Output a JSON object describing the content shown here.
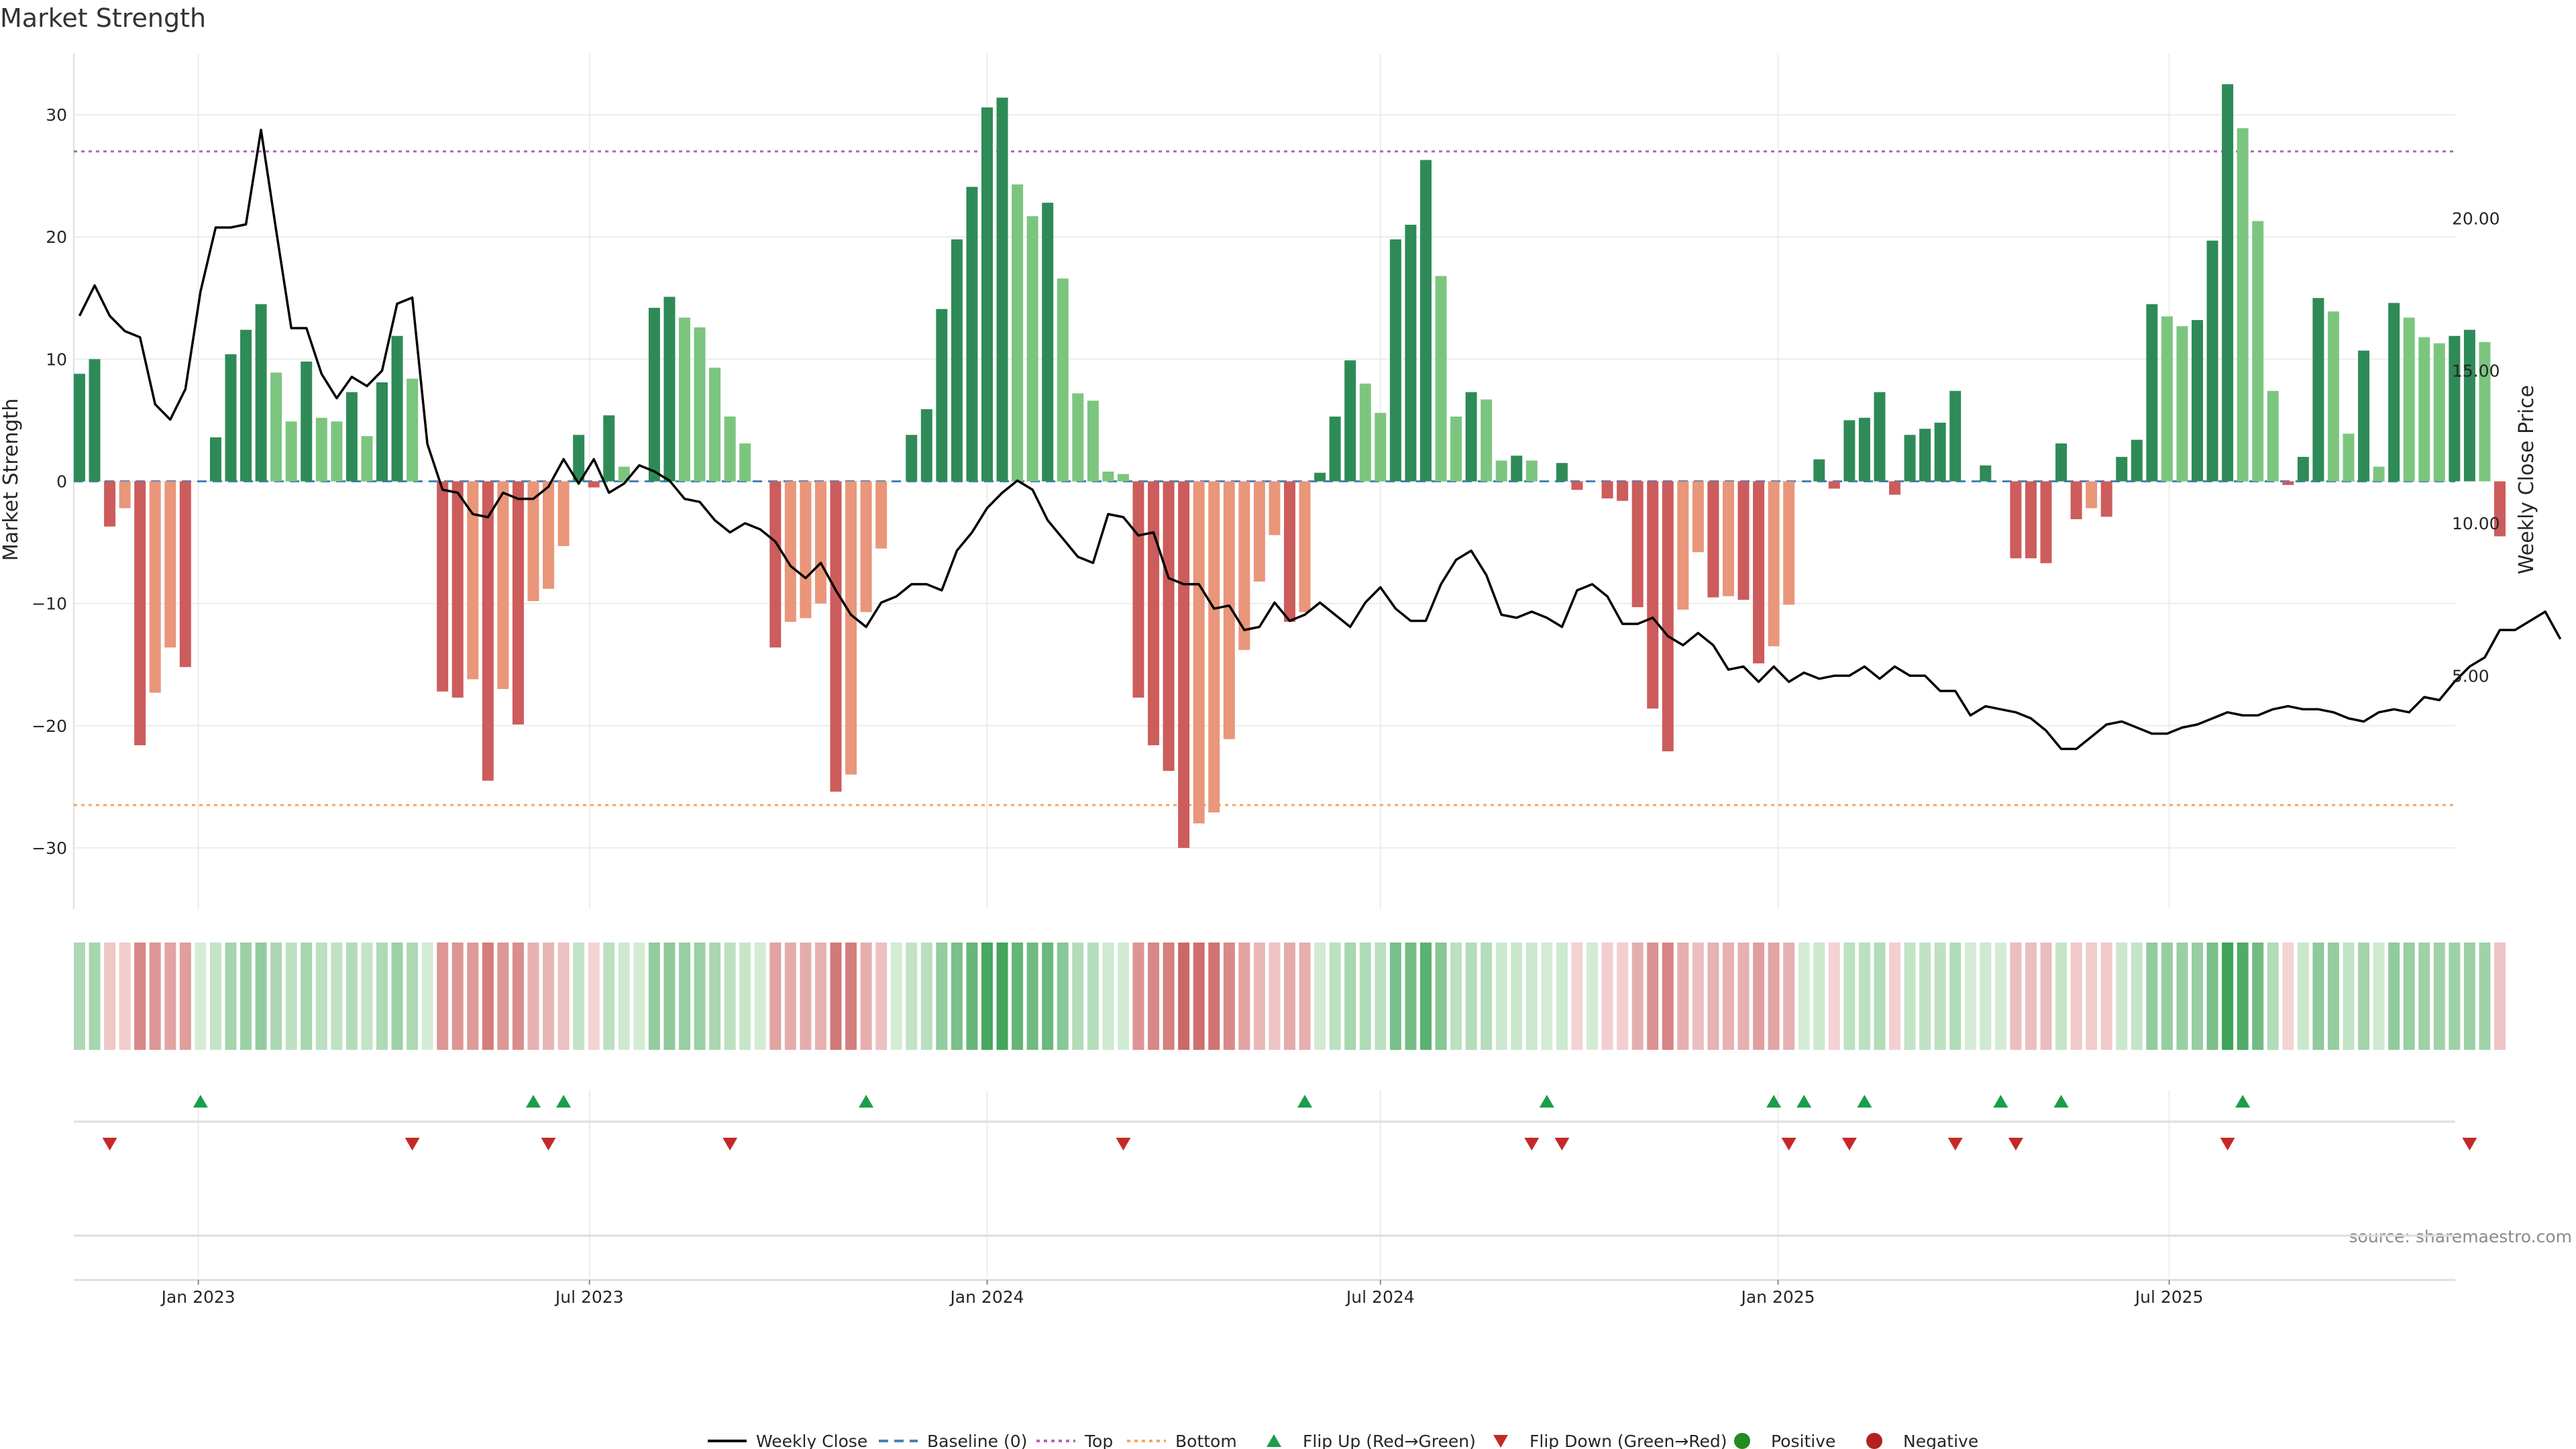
{
  "chart_data": {
    "title": "Market Strength",
    "type": "bar",
    "weeks_start": "2022-11-07",
    "x_axis": {
      "ticks": [
        "Jan 2023",
        "Jul 2023",
        "Jan 2024",
        "Jul 2024",
        "Jan 2025",
        "Jul 2025"
      ],
      "tick_dates": [
        "2023-01-01",
        "2023-07-01",
        "2024-01-01",
        "2024-07-01",
        "2025-01-01",
        "2025-07-01"
      ]
    },
    "left_axis": {
      "label": "Market Strength",
      "ylim": [
        -35,
        35
      ],
      "ticks": [
        "30",
        "20",
        "10",
        "0",
        "−10",
        "−20",
        "−30"
      ],
      "tick_values": [
        30,
        20,
        10,
        0,
        -10,
        -20,
        -30
      ]
    },
    "right_axis": {
      "label": "Weekly Close Price",
      "ylim": [
        -2.65,
        25.4
      ],
      "ticks": [
        "20.00",
        "15.00",
        "10.00",
        "5.00"
      ],
      "tick_values": [
        20,
        15,
        10,
        5
      ]
    },
    "reference_lines": {
      "top": 27.0,
      "bottom": -26.5,
      "baseline": 0
    },
    "strength": [
      8.8,
      10.0,
      -3.7,
      -2.2,
      -21.6,
      -17.3,
      -13.6,
      -15.2,
      0.0,
      3.6,
      10.4,
      12.4,
      14.5,
      8.9,
      4.9,
      9.8,
      5.2,
      4.9,
      7.3,
      3.7,
      8.1,
      11.9,
      8.4,
      0.0,
      -17.2,
      -17.7,
      -16.2,
      -24.5,
      -17.0,
      -19.9,
      -9.8,
      -8.8,
      -5.3,
      3.8,
      -0.5,
      5.4,
      1.2,
      0.0,
      14.2,
      15.1,
      13.4,
      12.6,
      9.3,
      5.3,
      3.1,
      0.0,
      -13.6,
      -11.5,
      -11.2,
      -10.0,
      -25.4,
      -24.0,
      -10.7,
      -5.5,
      0.0,
      3.8,
      5.9,
      14.1,
      19.8,
      24.1,
      30.6,
      31.4,
      24.3,
      21.7,
      22.8,
      16.6,
      7.2,
      6.6,
      0.8,
      0.6,
      -17.7,
      -21.6,
      -23.7,
      -30.0,
      -28.0,
      -27.1,
      -21.1,
      -13.8,
      -8.2,
      -4.4,
      -11.5,
      -10.7,
      0.7,
      5.3,
      9.9,
      8.0,
      5.6,
      19.8,
      21.0,
      26.3,
      16.8,
      5.3,
      7.3,
      6.7,
      1.7,
      2.1,
      1.7,
      0.0,
      1.5,
      -0.7,
      0.0,
      -1.4,
      -1.6,
      -10.3,
      -18.6,
      -22.1,
      -10.5,
      -5.8,
      -9.5,
      -9.4,
      -9.7,
      -14.9,
      -13.5,
      -10.1,
      0.0,
      1.8,
      -0.6,
      5.0,
      5.2,
      7.3,
      -1.1,
      3.8,
      4.3,
      4.8,
      7.4,
      0.0,
      1.3,
      0.0,
      -6.3,
      -6.3,
      -6.7,
      3.1,
      -3.1,
      -2.2,
      -2.9,
      2.0,
      3.4,
      14.5,
      13.5,
      12.7,
      13.2,
      19.7,
      32.5,
      28.9,
      21.3,
      7.4,
      -0.3,
      2.0,
      15.0,
      13.9,
      3.9,
      10.7,
      1.2,
      14.6,
      13.4,
      11.8,
      11.3,
      11.9,
      12.4,
      11.4,
      -4.5
    ],
    "weekly_close": [
      16.8,
      17.8,
      16.8,
      16.3,
      16.1,
      13.9,
      13.4,
      14.4,
      17.6,
      19.7,
      19.7,
      19.8,
      22.9,
      19.6,
      16.4,
      16.4,
      14.9,
      14.1,
      14.8,
      14.5,
      15.0,
      17.2,
      17.4,
      12.6,
      11.1,
      11.0,
      10.3,
      10.2,
      11.0,
      10.8,
      10.8,
      11.2,
      12.1,
      11.3,
      12.1,
      11.0,
      11.3,
      11.9,
      11.7,
      11.4,
      10.8,
      10.7,
      10.1,
      9.7,
      10.0,
      9.8,
      9.4,
      8.6,
      8.2,
      8.7,
      7.8,
      7.0,
      6.6,
      7.4,
      7.6,
      8.0,
      8.0,
      7.8,
      9.1,
      9.7,
      10.5,
      11.0,
      11.4,
      11.1,
      10.1,
      9.5,
      8.9,
      8.7,
      10.3,
      10.2,
      9.6,
      9.7,
      8.2,
      8.0,
      8.0,
      7.2,
      7.3,
      6.5,
      6.6,
      7.4,
      6.8,
      7.0,
      7.4,
      7.0,
      6.6,
      7.4,
      7.9,
      7.2,
      6.8,
      6.8,
      8.0,
      8.8,
      9.1,
      8.3,
      7.0,
      6.9,
      7.1,
      6.9,
      6.6,
      7.8,
      8.0,
      7.6,
      6.7,
      6.7,
      6.9,
      6.3,
      6.0,
      6.4,
      6.0,
      5.2,
      5.3,
      4.8,
      5.3,
      4.8,
      5.1,
      4.9,
      5.0,
      5.0,
      5.3,
      4.9,
      5.3,
      5.0,
      5.0,
      4.5,
      4.5,
      3.7,
      4.0,
      3.9,
      3.8,
      3.6,
      3.2,
      2.6,
      2.6,
      3.0,
      3.4,
      3.5,
      3.3,
      3.1,
      3.1,
      3.3,
      3.4,
      3.6,
      3.8,
      3.7,
      3.7,
      3.9,
      4.0,
      3.9,
      3.9,
      3.8,
      3.6,
      3.5,
      3.8,
      3.9,
      3.8,
      4.3,
      4.2,
      4.8,
      5.3,
      5.6,
      6.5,
      6.5,
      6.8,
      7.1,
      6.2
    ],
    "flip_up_weeks": [
      8,
      30,
      32,
      52,
      81,
      97,
      112,
      114,
      118,
      127,
      131,
      143
    ],
    "flip_down_weeks": [
      2,
      22,
      31,
      43,
      69,
      96,
      98,
      113,
      117,
      124,
      128,
      142,
      158
    ],
    "legend": [
      "Weekly Close",
      "Baseline (0)",
      "Top",
      "Bottom",
      "Flip Up (Red→Green)",
      "Flip Down (Green→Red)",
      "Positive",
      "Negative"
    ],
    "source": "source: sharemaestro.com",
    "legend_placement": "bottom-center",
    "grid": true
  },
  "colors": {
    "pos_dark": "#2e8b57",
    "pos_light": "#7cc57f",
    "neg_dark": "#cd5c5c",
    "neg_light": "#e9967a",
    "top_line": "#b464b4",
    "bottom_line": "#f4a460",
    "baseline": "#4682b4",
    "flip_up": "#1a9e4a",
    "flip_down": "#c62828",
    "positive_dot": "#228b22",
    "negative_dot": "#b22222",
    "grid": "#ececec",
    "close_line": "#000000"
  }
}
